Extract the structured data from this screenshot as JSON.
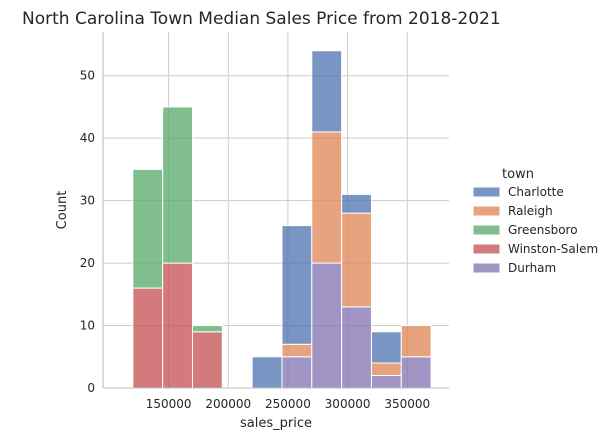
{
  "chart_data": {
    "type": "bar",
    "subtype": "stacked-histogram",
    "title": "North Carolina Town Median Sales Price from 2018-2021",
    "xlabel": "sales_price",
    "ylabel": "Count",
    "xlim": [
      95000,
      385000
    ],
    "ylim": [
      0,
      57
    ],
    "xticks": [
      150000,
      200000,
      250000,
      300000,
      350000
    ],
    "yticks": [
      0,
      10,
      20,
      30,
      40,
      50
    ],
    "grid": true,
    "bins": [
      [
        120000,
        145000
      ],
      [
        145000,
        170000
      ],
      [
        170000,
        195000
      ],
      [
        195000,
        220000
      ],
      [
        220000,
        245000
      ],
      [
        245000,
        270000
      ],
      [
        270000,
        295000
      ],
      [
        295000,
        320000
      ],
      [
        320000,
        345000
      ],
      [
        345000,
        370000
      ]
    ],
    "series": [
      {
        "name": "Durham",
        "color": "#8172b3",
        "values": [
          0,
          0,
          0,
          0,
          0,
          5,
          20,
          13,
          2,
          5
        ]
      },
      {
        "name": "Winston-Salem",
        "color": "#c44e52",
        "values": [
          16,
          20,
          9,
          0,
          0,
          0,
          0,
          0,
          0,
          0
        ]
      },
      {
        "name": "Greensboro",
        "color": "#55a868",
        "values": [
          19,
          25,
          1,
          0,
          0,
          0,
          0,
          0,
          0,
          0
        ]
      },
      {
        "name": "Raleigh",
        "color": "#dd8452",
        "values": [
          0,
          0,
          0,
          0,
          0,
          2,
          21,
          15,
          2,
          5
        ]
      },
      {
        "name": "Charlotte",
        "color": "#4c72b0",
        "values": [
          0,
          0,
          0,
          0,
          5,
          19,
          13,
          3,
          5,
          0
        ]
      }
    ],
    "legend": {
      "title": "town",
      "position": "right",
      "order": [
        "Charlotte",
        "Raleigh",
        "Greensboro",
        "Winston-Salem",
        "Durham"
      ]
    }
  }
}
